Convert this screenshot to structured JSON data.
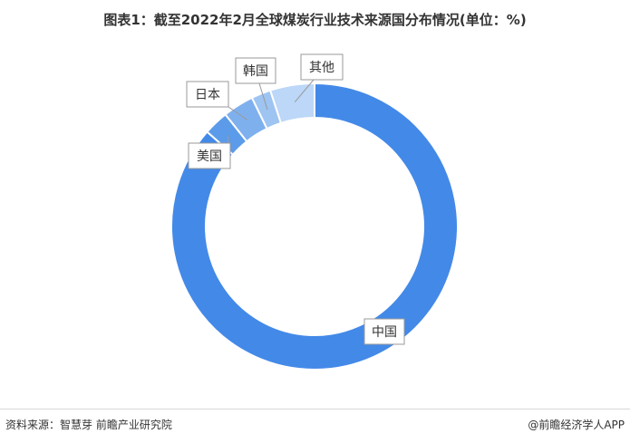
{
  "title": "图表1：截至2022年2月全球煤炭行业技术来源国分布情况(单位：%)",
  "footer": {
    "source": "资料来源：智慧芽 前瞻产业研究院",
    "credit": "@前瞻经济学人APP"
  },
  "chart_data": {
    "type": "pie",
    "subtype": "donut",
    "title": "图表1：截至2022年2月全球煤炭行业技术来源国分布情况(单位：%)",
    "unit": "%",
    "legend": "none",
    "labels_shown": "callouts",
    "categories": [
      "中国",
      "美国",
      "日本",
      "韩国",
      "其他"
    ],
    "values": [
      86.5,
      2.8,
      3.5,
      2.2,
      5.0
    ],
    "colors": [
      "#4389e8",
      "#5b9be9",
      "#7fb0ee",
      "#9ec4f2",
      "#bcd7f7"
    ]
  }
}
